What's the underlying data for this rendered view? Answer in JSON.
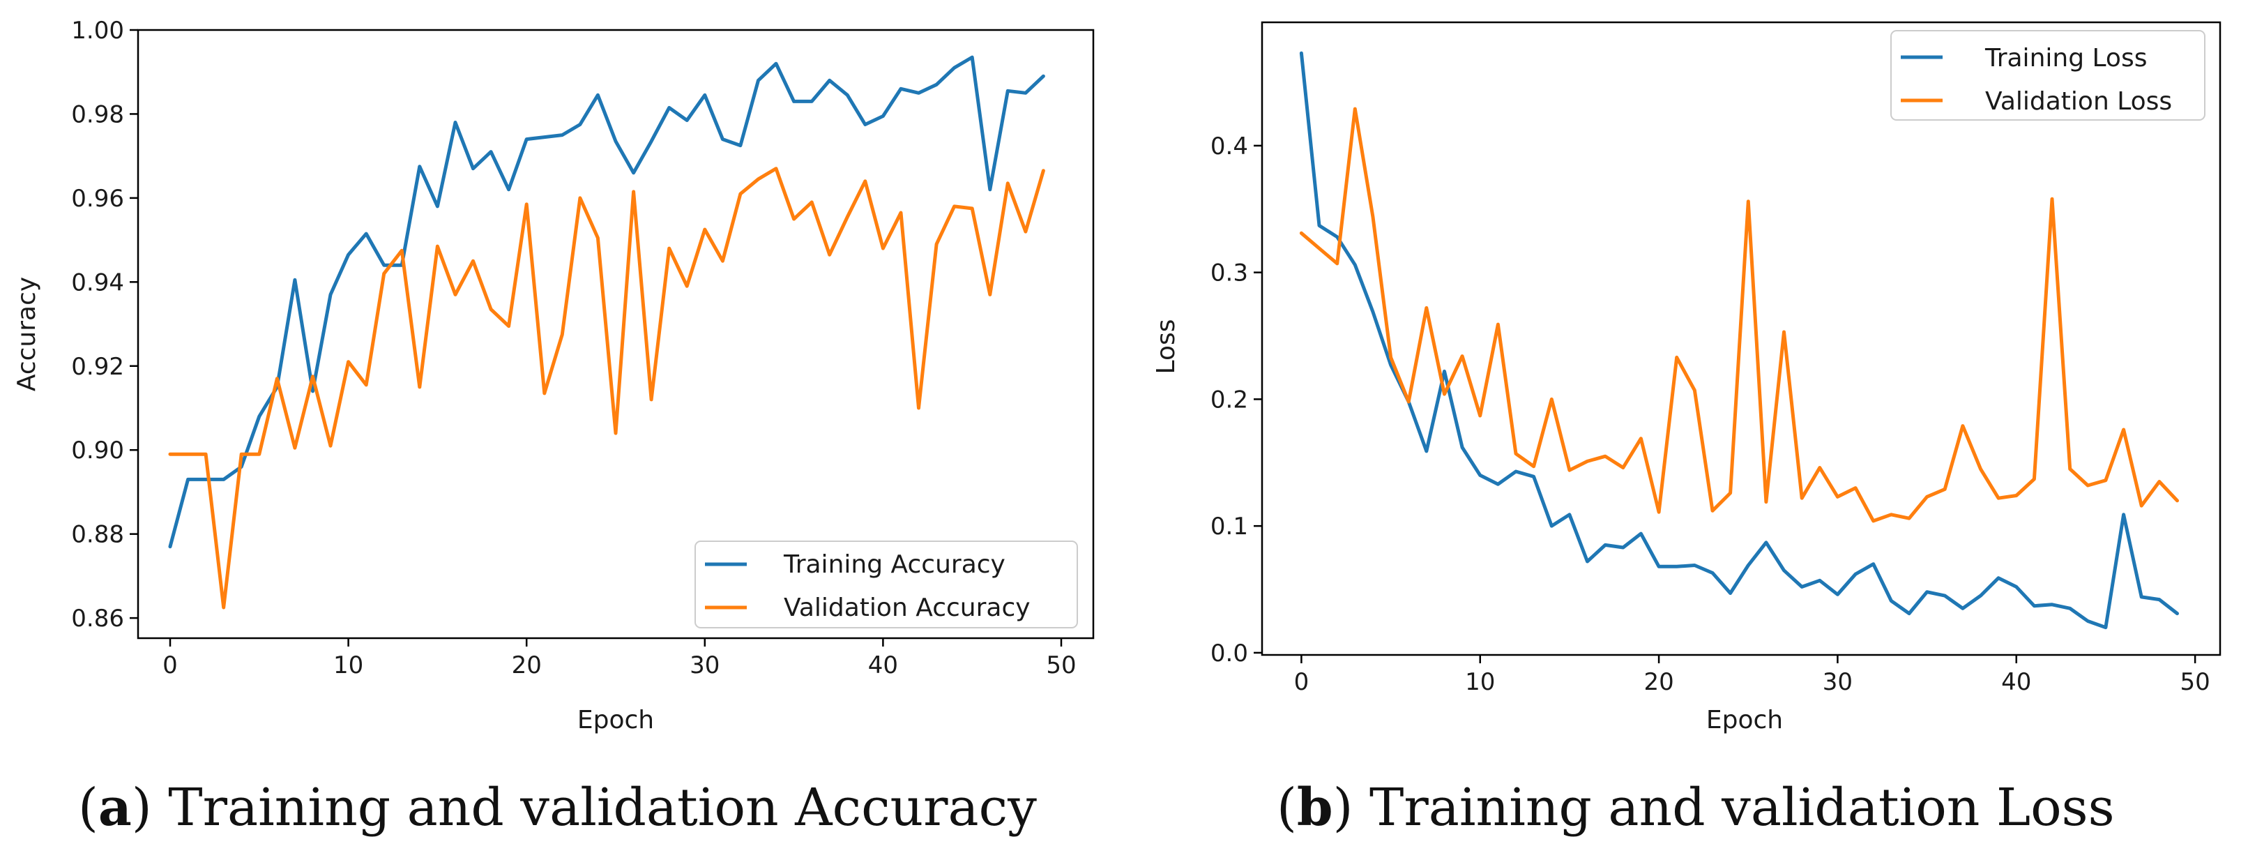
{
  "colors": {
    "training": "#1f77b4",
    "validation": "#ff7f0e",
    "axis": "#000000",
    "legend_border": "#cccccc"
  },
  "captions": [
    {
      "letter": "a",
      "text": "Training and validation Accuracy"
    },
    {
      "letter": "b",
      "text": "Training and validation Loss"
    }
  ],
  "chart_data": [
    {
      "type": "line",
      "title": "",
      "xlabel": "Epoch",
      "ylabel": "Accuracy",
      "xlim": [
        -1.8,
        51.8
      ],
      "ylim": [
        0.8552,
        1.0
      ],
      "xticks": [
        0,
        10,
        20,
        30,
        40,
        50
      ],
      "xtick_labels": [
        "0",
        "10",
        "20",
        "30",
        "40",
        "50"
      ],
      "yticks": [
        0.86,
        0.88,
        0.9,
        0.92,
        0.94,
        0.96,
        0.98,
        1.0
      ],
      "ytick_labels": [
        "0.86",
        "0.88",
        "0.90",
        "0.92",
        "0.94",
        "0.96",
        "0.98",
        "1.00"
      ],
      "legend_position": "lower-right",
      "x": [
        0,
        1,
        2,
        3,
        4,
        5,
        6,
        7,
        8,
        9,
        10,
        11,
        12,
        13,
        14,
        15,
        16,
        17,
        18,
        19,
        20,
        21,
        22,
        23,
        24,
        25,
        26,
        27,
        28,
        29,
        30,
        31,
        32,
        33,
        34,
        35,
        36,
        37,
        38,
        39,
        40,
        41,
        42,
        43,
        44,
        45,
        46,
        47,
        48,
        49
      ],
      "series": [
        {
          "name": "Training Accuracy",
          "values": [
            0.877,
            0.893,
            0.893,
            0.893,
            0.896,
            0.908,
            0.915,
            0.9405,
            0.914,
            0.937,
            0.9465,
            0.9515,
            0.944,
            0.944,
            0.9675,
            0.958,
            0.978,
            0.967,
            0.971,
            0.962,
            0.974,
            0.9745,
            0.975,
            0.9775,
            0.9845,
            0.9735,
            0.966,
            0.9735,
            0.9815,
            0.9785,
            0.9845,
            0.974,
            0.9725,
            0.988,
            0.992,
            0.983,
            0.983,
            0.988,
            0.9845,
            0.9775,
            0.9795,
            0.986,
            0.985,
            0.987,
            0.991,
            0.9935,
            0.962,
            0.9855,
            0.985,
            0.989
          ]
        },
        {
          "name": "Validation Accuracy",
          "values": [
            0.899,
            0.899,
            0.899,
            0.8625,
            0.899,
            0.899,
            0.917,
            0.9005,
            0.9175,
            0.901,
            0.921,
            0.9155,
            0.942,
            0.9475,
            0.915,
            0.9485,
            0.937,
            0.945,
            0.9335,
            0.9295,
            0.9585,
            0.9135,
            0.9275,
            0.96,
            0.9505,
            0.904,
            0.9615,
            0.912,
            0.948,
            0.939,
            0.9525,
            0.945,
            0.961,
            0.9645,
            0.967,
            0.955,
            0.959,
            0.9465,
            0.9555,
            0.964,
            0.948,
            0.9565,
            0.91,
            0.949,
            0.958,
            0.9575,
            0.937,
            0.9635,
            0.952,
            0.9665
          ]
        }
      ]
    },
    {
      "type": "line",
      "title": "",
      "xlabel": "Epoch",
      "ylabel": "Loss",
      "xlim": [
        -2.2,
        51.4
      ],
      "ylim": [
        -0.0017,
        0.4973
      ],
      "xticks": [
        0,
        10,
        20,
        30,
        40,
        50
      ],
      "xtick_labels": [
        "0",
        "10",
        "20",
        "30",
        "40",
        "50"
      ],
      "yticks": [
        0.0,
        0.1,
        0.2,
        0.3,
        0.4
      ],
      "ytick_labels": [
        "0.0",
        "0.1",
        "0.2",
        "0.3",
        "0.4"
      ],
      "legend_position": "upper-right",
      "x": [
        0,
        1,
        2,
        3,
        4,
        5,
        6,
        7,
        8,
        9,
        10,
        11,
        12,
        13,
        14,
        15,
        16,
        17,
        18,
        19,
        20,
        21,
        22,
        23,
        24,
        25,
        26,
        27,
        28,
        29,
        30,
        31,
        32,
        33,
        34,
        35,
        36,
        37,
        38,
        39,
        40,
        41,
        42,
        43,
        44,
        45,
        46,
        47,
        48,
        49
      ],
      "series": [
        {
          "name": "Training Loss",
          "values": [
            0.473,
            0.337,
            0.328,
            0.306,
            0.269,
            0.227,
            0.198,
            0.159,
            0.222,
            0.162,
            0.14,
            0.133,
            0.143,
            0.139,
            0.1,
            0.109,
            0.072,
            0.085,
            0.083,
            0.094,
            0.068,
            0.068,
            0.069,
            0.063,
            0.047,
            0.069,
            0.087,
            0.065,
            0.052,
            0.057,
            0.046,
            0.062,
            0.07,
            0.041,
            0.031,
            0.048,
            0.045,
            0.035,
            0.045,
            0.059,
            0.052,
            0.037,
            0.038,
            0.035,
            0.025,
            0.02,
            0.109,
            0.044,
            0.042,
            0.031
          ]
        },
        {
          "name": "Validation Loss",
          "values": [
            0.331,
            0.319,
            0.307,
            0.429,
            0.344,
            0.233,
            0.198,
            0.272,
            0.204,
            0.234,
            0.187,
            0.259,
            0.157,
            0.147,
            0.2,
            0.144,
            0.151,
            0.155,
            0.146,
            0.169,
            0.111,
            0.233,
            0.207,
            0.112,
            0.126,
            0.356,
            0.119,
            0.253,
            0.122,
            0.146,
            0.123,
            0.13,
            0.104,
            0.109,
            0.106,
            0.123,
            0.129,
            0.179,
            0.145,
            0.122,
            0.124,
            0.137,
            0.358,
            0.145,
            0.132,
            0.136,
            0.176,
            0.116,
            0.135,
            0.12
          ]
        }
      ]
    }
  ]
}
